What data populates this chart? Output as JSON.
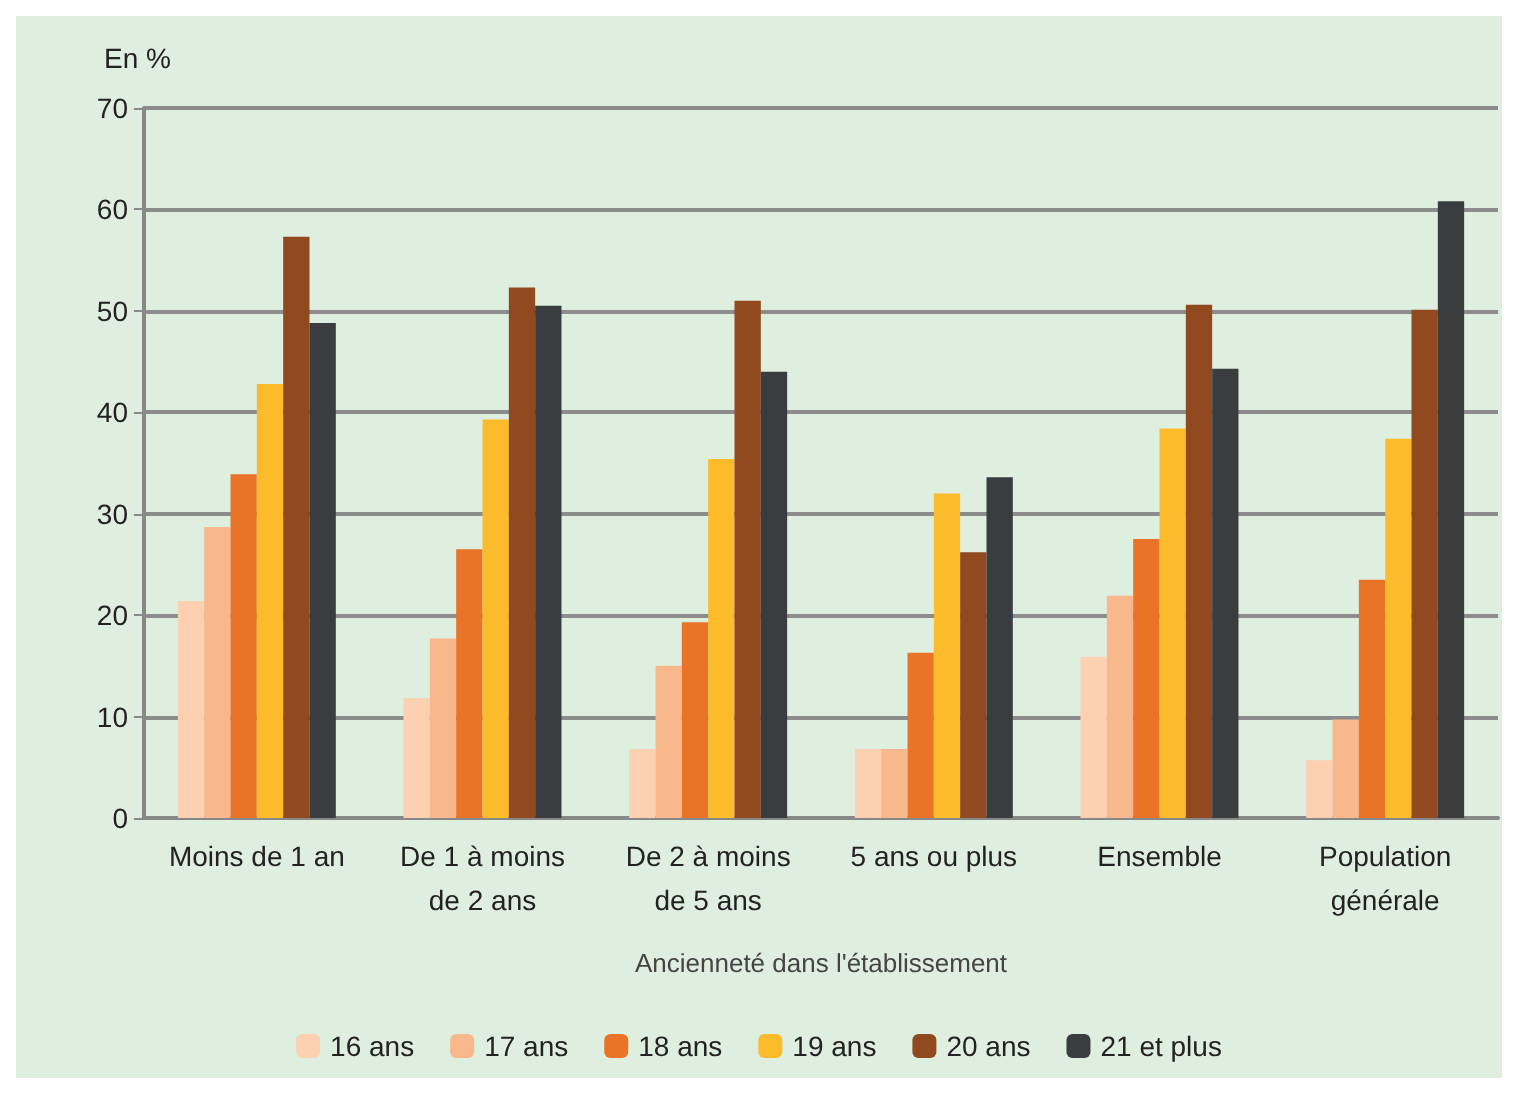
{
  "chart_data": {
    "type": "bar",
    "ylabel": "En %",
    "xlabel": "Ancienneté dans l'établissement",
    "categories": [
      "Moins de 1 an",
      "De 1 à moins\nde 2 ans",
      "De 2 à moins\nde 5 ans",
      "5 ans ou plus",
      "Ensemble",
      "Population\ngénérale"
    ],
    "series": [
      {
        "name": "16 ans",
        "color": "#fcd0b0",
        "values": [
          21.4,
          11.8,
          6.8,
          6.8,
          15.9,
          5.7
        ]
      },
      {
        "name": "17 ans",
        "color": "#f9b88b",
        "values": [
          28.7,
          17.7,
          15.0,
          6.8,
          21.9,
          9.7
        ]
      },
      {
        "name": "18 ans",
        "color": "#e97326",
        "values": [
          33.9,
          26.5,
          19.3,
          16.3,
          27.5,
          23.5
        ]
      },
      {
        "name": "19 ans",
        "color": "#fcbb2a",
        "values": [
          42.8,
          39.3,
          35.4,
          32.0,
          38.4,
          37.4
        ]
      },
      {
        "name": "20 ans",
        "color": "#914a1f",
        "values": [
          57.3,
          52.3,
          51.0,
          26.2,
          50.6,
          50.1
        ]
      },
      {
        "name": "21 et plus",
        "color": "#3a3d40",
        "values": [
          48.8,
          50.5,
          44.0,
          33.6,
          44.3,
          60.8
        ]
      }
    ],
    "ylim": [
      0,
      70
    ],
    "yticks": [
      0,
      10,
      20,
      30,
      40,
      50,
      60,
      70
    ],
    "grid": true,
    "legend": "bottom"
  }
}
